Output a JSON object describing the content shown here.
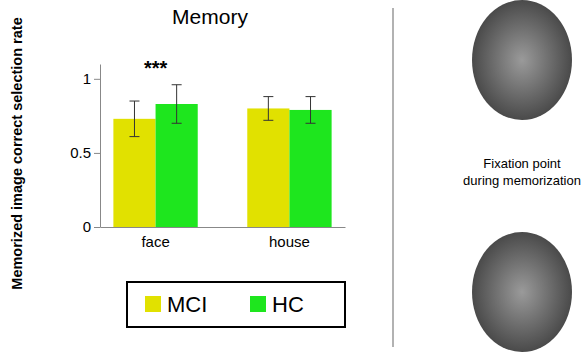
{
  "chart_data": {
    "type": "bar",
    "title": "Memory",
    "y_label": "Memorized image correct selection rate",
    "categories": [
      "face",
      "house"
    ],
    "series": [
      {
        "name": "MCI",
        "color": "#e1e100",
        "values": [
          0.73,
          0.8
        ],
        "errors": [
          0.12,
          0.08
        ]
      },
      {
        "name": "HC",
        "color": "#1ee61e",
        "values": [
          0.83,
          0.79
        ],
        "errors": [
          0.13,
          0.09
        ]
      }
    ],
    "ylim": [
      0,
      1.1
    ],
    "yticks": [
      0,
      0.5,
      1
    ],
    "grid": false,
    "legend": "bottom",
    "annotations": [
      {
        "text": "***",
        "x": "face"
      }
    ]
  },
  "figure": {
    "caption_lines": [
      "Fixation point",
      "during memorization"
    ]
  }
}
